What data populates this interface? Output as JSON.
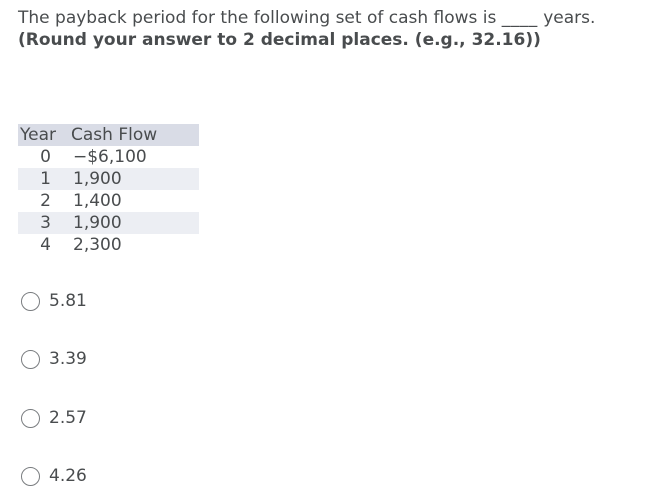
{
  "question": {
    "text": "The payback period for the following set of cash flows is",
    "blank": "____",
    "unit": "years.",
    "instruction": "(Round your answer to 2 decimal places. (e.g., 32.16))"
  },
  "table": {
    "headers": [
      "Year",
      "Cash Flow"
    ],
    "rows": [
      {
        "year": "0",
        "cash_flow": "−$6,100"
      },
      {
        "year": "1",
        "cash_flow": "1,900"
      },
      {
        "year": "2",
        "cash_flow": "1,400"
      },
      {
        "year": "3",
        "cash_flow": "1,900"
      },
      {
        "year": "4",
        "cash_flow": "2,300"
      }
    ]
  },
  "options": [
    {
      "label": "5.81"
    },
    {
      "label": "3.39"
    },
    {
      "label": "2.57"
    },
    {
      "label": "4.26"
    }
  ]
}
